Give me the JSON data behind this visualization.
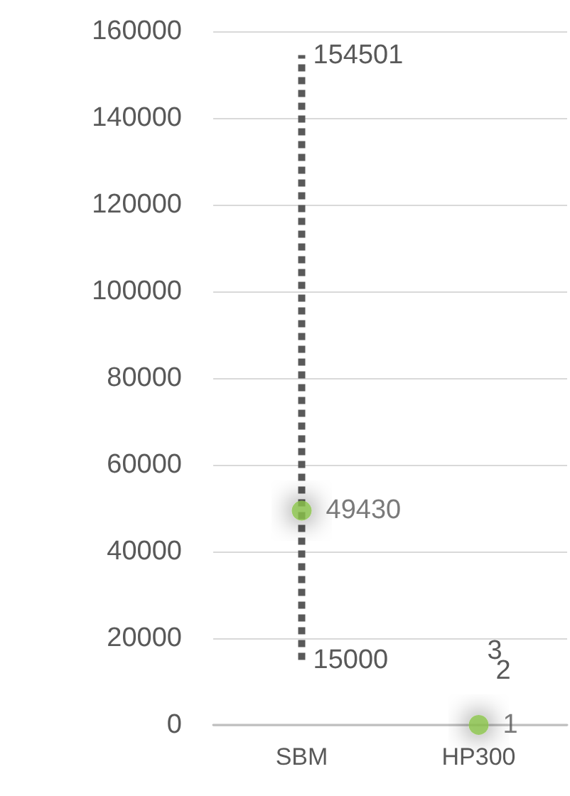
{
  "chart_data": {
    "type": "scatter",
    "categories": [
      "SBM",
      "HP300"
    ],
    "values": [
      49430,
      1
    ],
    "errors": [
      [
        15000,
        154501
      ],
      [
        2,
        3
      ]
    ],
    "value_labels": [
      "49430",
      "1"
    ],
    "annotations": [
      {
        "text": "154501",
        "x": "SBM",
        "y": 154501
      },
      {
        "text": "15000",
        "x": "SBM",
        "y": 15000
      },
      {
        "text": "3",
        "x": "HP300",
        "y": 3
      },
      {
        "text": "2",
        "x": "HP300",
        "y": 2
      }
    ],
    "color": "#8bc34a",
    "ylim": [
      0,
      160000
    ],
    "yticks": [
      0,
      20000,
      40000,
      60000,
      80000,
      100000,
      120000,
      140000,
      160000
    ],
    "grid": "y",
    "marker": "circle",
    "line_style": "dotted"
  }
}
